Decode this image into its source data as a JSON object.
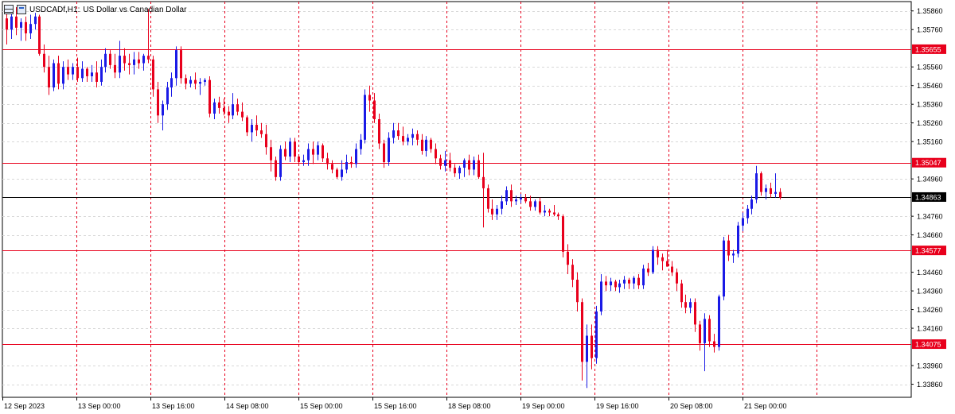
{
  "header": {
    "symbol": "USDCADf,H1:",
    "description": "US Dollar vs Canadian Dollar",
    "grid_icon": "chart-grid-icon",
    "window_icon": "chart-window-icon"
  },
  "colors": {
    "bull": "#1a1ae6",
    "bear": "#e8001c",
    "hline": "#e8001c",
    "vline": "#e8001c",
    "current_line": "#000000",
    "grid": "#d8d8d8"
  },
  "chart_data": {
    "type": "candlestick",
    "timeframe": "H1",
    "ylim": [
      1.3379,
      1.3591
    ],
    "price_ticks": [
      "1.35860",
      "1.35760",
      "1.35655",
      "1.35560",
      "1.35460",
      "1.35360",
      "1.35260",
      "1.35160",
      "1.35047",
      "1.34960",
      "1.34863",
      "1.34760",
      "1.34660",
      "1.34577",
      "1.34460",
      "1.34360",
      "1.34260",
      "1.34160",
      "1.34075",
      "1.33960",
      "1.33860"
    ],
    "time_labels": [
      "12 Sep 2023",
      "13 Sep 00:00",
      "13 Sep 16:00",
      "14 Sep 08:00",
      "15 Sep 00:00",
      "15 Sep 16:00",
      "18 Sep 08:00",
      "19 Sep 00:00",
      "19 Sep 16:00",
      "20 Sep 08:00",
      "21 Sep 00:00"
    ],
    "horizontal_levels": [
      {
        "price": 1.35655,
        "label": "1.35655"
      },
      {
        "price": 1.35047,
        "label": "1.35047"
      },
      {
        "price": 1.34577,
        "label": "1.34577"
      },
      {
        "price": 1.34075,
        "label": "1.34075"
      }
    ],
    "current_price": {
      "price": 1.34863,
      "label": "1.34863"
    },
    "vertical_markers": [
      "12 Sep 2023",
      "13 Sep 00:00",
      "13 Sep 16:00",
      "14 Sep 08:00",
      "15 Sep 00:00",
      "15 Sep 16:00",
      "18 Sep 08:00",
      "19 Sep 00:00",
      "19 Sep 16:00",
      "20 Sep 08:00",
      "21 Sep 00:00",
      "21 Sep 16:00"
    ],
    "candles": [
      [
        1.3582,
        1.3589,
        1.3568,
        1.3576
      ],
      [
        1.3576,
        1.3586,
        1.3571,
        1.3583
      ],
      [
        1.3583,
        1.3588,
        1.3573,
        1.3577
      ],
      [
        1.3577,
        1.3582,
        1.357,
        1.358
      ],
      [
        1.358,
        1.3583,
        1.357,
        1.3574
      ],
      [
        1.3574,
        1.3584,
        1.3571,
        1.3579
      ],
      [
        1.3579,
        1.3585,
        1.3576,
        1.3583
      ],
      [
        1.3583,
        1.3584,
        1.3562,
        1.3563
      ],
      [
        1.3563,
        1.3568,
        1.3553,
        1.3556
      ],
      [
        1.3556,
        1.3562,
        1.3541,
        1.3545
      ],
      [
        1.3545,
        1.356,
        1.3543,
        1.3558
      ],
      [
        1.3558,
        1.3562,
        1.3544,
        1.3547
      ],
      [
        1.3547,
        1.3559,
        1.3544,
        1.3556
      ],
      [
        1.3556,
        1.356,
        1.3549,
        1.3552
      ],
      [
        1.3552,
        1.3558,
        1.3549,
        1.3556
      ],
      [
        1.3556,
        1.3561,
        1.3548,
        1.355
      ],
      [
        1.355,
        1.3559,
        1.3548,
        1.3555
      ],
      [
        1.3555,
        1.3556,
        1.3548,
        1.3551
      ],
      [
        1.3551,
        1.3557,
        1.3548,
        1.3553
      ],
      [
        1.3553,
        1.3559,
        1.3545,
        1.3548
      ],
      [
        1.3548,
        1.356,
        1.3546,
        1.3556
      ],
      [
        1.3556,
        1.3566,
        1.3553,
        1.3563
      ],
      [
        1.3563,
        1.3565,
        1.3555,
        1.3557
      ],
      [
        1.3557,
        1.3563,
        1.355,
        1.3553
      ],
      [
        1.3553,
        1.357,
        1.355,
        1.3562
      ],
      [
        1.3562,
        1.3566,
        1.3554,
        1.3558
      ],
      [
        1.3558,
        1.3563,
        1.3552,
        1.3557
      ],
      [
        1.3557,
        1.3564,
        1.3552,
        1.356
      ],
      [
        1.356,
        1.3564,
        1.3555,
        1.3558
      ],
      [
        1.3558,
        1.3563,
        1.3554,
        1.3562
      ],
      [
        1.3562,
        1.3587,
        1.3558,
        1.356
      ],
      [
        1.356,
        1.3562,
        1.354,
        1.3544
      ],
      [
        1.3544,
        1.3548,
        1.3526,
        1.353
      ],
      [
        1.353,
        1.3538,
        1.3522,
        1.3536
      ],
      [
        1.3536,
        1.3548,
        1.3533,
        1.3545
      ],
      [
        1.3545,
        1.3553,
        1.354,
        1.355
      ],
      [
        1.355,
        1.3567,
        1.3546,
        1.3565
      ],
      [
        1.3565,
        1.3567,
        1.3547,
        1.355
      ],
      [
        1.355,
        1.3552,
        1.3544,
        1.3547
      ],
      [
        1.3547,
        1.3551,
        1.3545,
        1.3549
      ],
      [
        1.3549,
        1.3553,
        1.3544,
        1.3547
      ],
      [
        1.3547,
        1.355,
        1.3541,
        1.3548
      ],
      [
        1.3548,
        1.355,
        1.3546,
        1.3549
      ],
      [
        1.3549,
        1.3551,
        1.3529,
        1.3531
      ],
      [
        1.3531,
        1.3539,
        1.3528,
        1.3537
      ],
      [
        1.3537,
        1.354,
        1.3531,
        1.3534
      ],
      [
        1.3534,
        1.3539,
        1.353,
        1.3532
      ],
      [
        1.3532,
        1.3535,
        1.3526,
        1.353
      ],
      [
        1.353,
        1.3542,
        1.3528,
        1.3536
      ],
      [
        1.3536,
        1.3539,
        1.353,
        1.3532
      ],
      [
        1.3532,
        1.3537,
        1.3527,
        1.3529
      ],
      [
        1.3529,
        1.353,
        1.3519,
        1.3521
      ],
      [
        1.3521,
        1.3528,
        1.3516,
        1.3525
      ],
      [
        1.3525,
        1.353,
        1.3519,
        1.3522
      ],
      [
        1.3522,
        1.3526,
        1.3518,
        1.352
      ],
      [
        1.352,
        1.3525,
        1.3509,
        1.3513
      ],
      [
        1.3513,
        1.3517,
        1.35,
        1.3506
      ],
      [
        1.3506,
        1.3508,
        1.3495,
        1.3497
      ],
      [
        1.3497,
        1.3514,
        1.3495,
        1.3512
      ],
      [
        1.3512,
        1.3516,
        1.3506,
        1.3508
      ],
      [
        1.3508,
        1.3518,
        1.3505,
        1.3516
      ],
      [
        1.3516,
        1.3518,
        1.3505,
        1.3508
      ],
      [
        1.3508,
        1.3509,
        1.3504,
        1.3505
      ],
      [
        1.3505,
        1.3509,
        1.3503,
        1.3506
      ],
      [
        1.3506,
        1.3515,
        1.3503,
        1.3512
      ],
      [
        1.3512,
        1.3516,
        1.3504,
        1.3509
      ],
      [
        1.3509,
        1.3516,
        1.3506,
        1.3514
      ],
      [
        1.3514,
        1.3515,
        1.3505,
        1.3507
      ],
      [
        1.3507,
        1.351,
        1.3501,
        1.3504
      ],
      [
        1.3504,
        1.3506,
        1.3499,
        1.3501
      ],
      [
        1.3501,
        1.3502,
        1.3496,
        1.3497
      ],
      [
        1.3497,
        1.3506,
        1.3495,
        1.3501
      ],
      [
        1.3501,
        1.3509,
        1.3499,
        1.3505
      ],
      [
        1.3505,
        1.3508,
        1.3502,
        1.3504
      ],
      [
        1.3504,
        1.3515,
        1.3502,
        1.3512
      ],
      [
        1.3512,
        1.352,
        1.3509,
        1.3517
      ],
      [
        1.3517,
        1.3544,
        1.3515,
        1.3541
      ],
      [
        1.3541,
        1.3546,
        1.3532,
        1.3538
      ],
      [
        1.3538,
        1.3542,
        1.3526,
        1.3528
      ],
      [
        1.3528,
        1.3531,
        1.3512,
        1.3515
      ],
      [
        1.3515,
        1.3517,
        1.3502,
        1.3505
      ],
      [
        1.3505,
        1.3521,
        1.3503,
        1.3518
      ],
      [
        1.3518,
        1.3526,
        1.3515,
        1.3522
      ],
      [
        1.3522,
        1.3526,
        1.3517,
        1.3519
      ],
      [
        1.3519,
        1.3524,
        1.3514,
        1.3516
      ],
      [
        1.3516,
        1.352,
        1.3514,
        1.3518
      ],
      [
        1.3518,
        1.3523,
        1.3514,
        1.352
      ],
      [
        1.352,
        1.3522,
        1.3514,
        1.3517
      ],
      [
        1.3517,
        1.352,
        1.3509,
        1.3511
      ],
      [
        1.3511,
        1.3519,
        1.3508,
        1.3517
      ],
      [
        1.3517,
        1.3518,
        1.351,
        1.3512
      ],
      [
        1.3512,
        1.3515,
        1.3504,
        1.3507
      ],
      [
        1.3507,
        1.3509,
        1.3501,
        1.3503
      ],
      [
        1.3503,
        1.3511,
        1.35,
        1.3506
      ],
      [
        1.3506,
        1.351,
        1.35,
        1.3502
      ],
      [
        1.3502,
        1.3504,
        1.3497,
        1.3499
      ],
      [
        1.3499,
        1.3503,
        1.3496,
        1.3502
      ],
      [
        1.3502,
        1.3507,
        1.3497,
        1.3506
      ],
      [
        1.3506,
        1.3509,
        1.3498,
        1.3501
      ],
      [
        1.3501,
        1.3508,
        1.3498,
        1.3506
      ],
      [
        1.3506,
        1.3509,
        1.3496,
        1.3497
      ],
      [
        1.3497,
        1.351,
        1.347,
        1.3491
      ],
      [
        1.3491,
        1.3493,
        1.3478,
        1.348
      ],
      [
        1.348,
        1.3485,
        1.3474,
        1.3477
      ],
      [
        1.3477,
        1.3482,
        1.3474,
        1.348
      ],
      [
        1.348,
        1.3487,
        1.3477,
        1.3484
      ],
      [
        1.3484,
        1.3492,
        1.3482,
        1.349
      ],
      [
        1.349,
        1.3493,
        1.3481,
        1.3484
      ],
      [
        1.3484,
        1.3487,
        1.3482,
        1.3485
      ],
      [
        1.3485,
        1.3488,
        1.3483,
        1.3486
      ],
      [
        1.3486,
        1.3488,
        1.3483,
        1.3484
      ],
      [
        1.3484,
        1.3487,
        1.3479,
        1.3481
      ],
      [
        1.3481,
        1.3485,
        1.3479,
        1.3484
      ],
      [
        1.3484,
        1.3486,
        1.3477,
        1.3478
      ],
      [
        1.3478,
        1.3482,
        1.3476,
        1.3479
      ],
      [
        1.3479,
        1.348,
        1.3476,
        1.3478
      ],
      [
        1.3478,
        1.3482,
        1.3476,
        1.3477
      ],
      [
        1.3477,
        1.3478,
        1.3474,
        1.3476
      ],
      [
        1.3476,
        1.3477,
        1.3454,
        1.3457
      ],
      [
        1.3457,
        1.3461,
        1.3445,
        1.345
      ],
      [
        1.345,
        1.3453,
        1.3438,
        1.3442
      ],
      [
        1.3442,
        1.3446,
        1.3425,
        1.343
      ],
      [
        1.343,
        1.3432,
        1.3388,
        1.3398
      ],
      [
        1.3398,
        1.3418,
        1.3384,
        1.3412
      ],
      [
        1.3412,
        1.3418,
        1.3394,
        1.34
      ],
      [
        1.34,
        1.3428,
        1.3397,
        1.3425
      ],
      [
        1.3425,
        1.3445,
        1.3423,
        1.3441
      ],
      [
        1.3441,
        1.3444,
        1.3436,
        1.3439
      ],
      [
        1.3439,
        1.3443,
        1.3436,
        1.3441
      ],
      [
        1.3441,
        1.3442,
        1.3436,
        1.3438
      ],
      [
        1.3438,
        1.3442,
        1.3435,
        1.344
      ],
      [
        1.344,
        1.3444,
        1.3437,
        1.3442
      ],
      [
        1.3442,
        1.3443,
        1.3437,
        1.344
      ],
      [
        1.344,
        1.3444,
        1.3437,
        1.3443
      ],
      [
        1.3443,
        1.3445,
        1.3437,
        1.3439
      ],
      [
        1.3439,
        1.345,
        1.3437,
        1.3448
      ],
      [
        1.3448,
        1.3451,
        1.3444,
        1.3446
      ],
      [
        1.3446,
        1.346,
        1.3445,
        1.3458
      ],
      [
        1.3458,
        1.346,
        1.345,
        1.3454
      ],
      [
        1.3454,
        1.3456,
        1.3447,
        1.3452
      ],
      [
        1.3452,
        1.3458,
        1.3449,
        1.3449
      ],
      [
        1.3449,
        1.3452,
        1.3444,
        1.3446
      ],
      [
        1.3446,
        1.3448,
        1.3436,
        1.344
      ],
      [
        1.344,
        1.3442,
        1.3427,
        1.343
      ],
      [
        1.343,
        1.3434,
        1.3424,
        1.3427
      ],
      [
        1.3427,
        1.3432,
        1.3424,
        1.343
      ],
      [
        1.343,
        1.3432,
        1.3414,
        1.3418
      ],
      [
        1.3418,
        1.342,
        1.3404,
        1.3408
      ],
      [
        1.3408,
        1.3424,
        1.3393,
        1.3421
      ],
      [
        1.3421,
        1.3423,
        1.3406,
        1.3409
      ],
      [
        1.3409,
        1.3413,
        1.3403,
        1.3406
      ],
      [
        1.3406,
        1.3434,
        1.3404,
        1.3433
      ],
      [
        1.3433,
        1.3465,
        1.3431,
        1.3463
      ],
      [
        1.3463,
        1.3466,
        1.3452,
        1.3455
      ],
      [
        1.3455,
        1.3458,
        1.3451,
        1.3456
      ],
      [
        1.3456,
        1.3473,
        1.3454,
        1.3471
      ],
      [
        1.3471,
        1.3478,
        1.3468,
        1.3475
      ],
      [
        1.3475,
        1.3482,
        1.3472,
        1.348
      ],
      [
        1.348,
        1.3487,
        1.3477,
        1.3485
      ],
      [
        1.3485,
        1.3503,
        1.3483,
        1.3499
      ],
      [
        1.3499,
        1.35,
        1.3487,
        1.3489
      ],
      [
        1.3489,
        1.3493,
        1.3485,
        1.3491
      ],
      [
        1.3491,
        1.3494,
        1.3486,
        1.3488
      ],
      [
        1.3488,
        1.3499,
        1.3486,
        1.3489
      ],
      [
        1.3489,
        1.3491,
        1.3485,
        1.3486
      ]
    ]
  }
}
